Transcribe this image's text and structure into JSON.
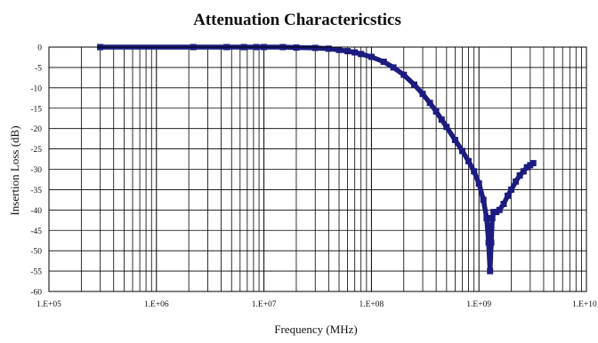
{
  "chart_data": {
    "type": "line",
    "title": "Attenuation Charactericstics",
    "xlabel": "Frequency (MHz)",
    "ylabel": "Insertion Loss (dB)",
    "x_scale": "log",
    "xlim": [
      100000,
      10000000000
    ],
    "ylim": [
      -60,
      0
    ],
    "grid": true,
    "x_tick_labels": [
      "1.E+05",
      "1.E+06",
      "1.E+07",
      "1.E+08",
      "1.E+09",
      "1.E+10"
    ],
    "y_tick_labels": [
      "0",
      "-5",
      "-10",
      "-15",
      "-20",
      "-25",
      "-30",
      "-35",
      "-40",
      "-45",
      "-50",
      "-55",
      "-60"
    ],
    "y_ticks": [
      0,
      -5,
      -10,
      -15,
      -20,
      -25,
      -30,
      -35,
      -40,
      -45,
      -50,
      -55,
      -60
    ],
    "line_color": "#1c1c80",
    "series": [
      {
        "x": [
          300000,
          2200000,
          4500000,
          6500000,
          8500000,
          10000000,
          15000000,
          20000000,
          30000000,
          40000000,
          50000000,
          60000000,
          70000000,
          80000000,
          100000000,
          130000000,
          160000000,
          200000000,
          250000000,
          300000000,
          350000000,
          400000000,
          450000000,
          500000000,
          600000000,
          700000000,
          800000000,
          900000000,
          1000000000,
          1100000000,
          1180000000,
          1230000000,
          1270000000,
          1300000000,
          1330000000,
          1370000000,
          1450000000,
          1550000000,
          1700000000,
          1850000000,
          2000000000,
          2200000000,
          2400000000,
          2600000000,
          2800000000,
          3000000000,
          3200000000
        ],
        "y": [
          0,
          0,
          0,
          0,
          0,
          0,
          0,
          -0.1,
          -0.2,
          -0.4,
          -0.7,
          -1.0,
          -1.3,
          -1.7,
          -2.4,
          -3.6,
          -5.0,
          -6.8,
          -9.2,
          -11.5,
          -13.7,
          -15.8,
          -17.8,
          -19.6,
          -22.8,
          -25.5,
          -28.0,
          -30.5,
          -33.5,
          -37.5,
          -42,
          -48,
          -55,
          -48,
          -42,
          -40.5,
          -40.5,
          -40.0,
          -38.5,
          -36.5,
          -35.0,
          -33.0,
          -31.5,
          -30.5,
          -29.5,
          -29.0,
          -28.5
        ]
      }
    ]
  }
}
